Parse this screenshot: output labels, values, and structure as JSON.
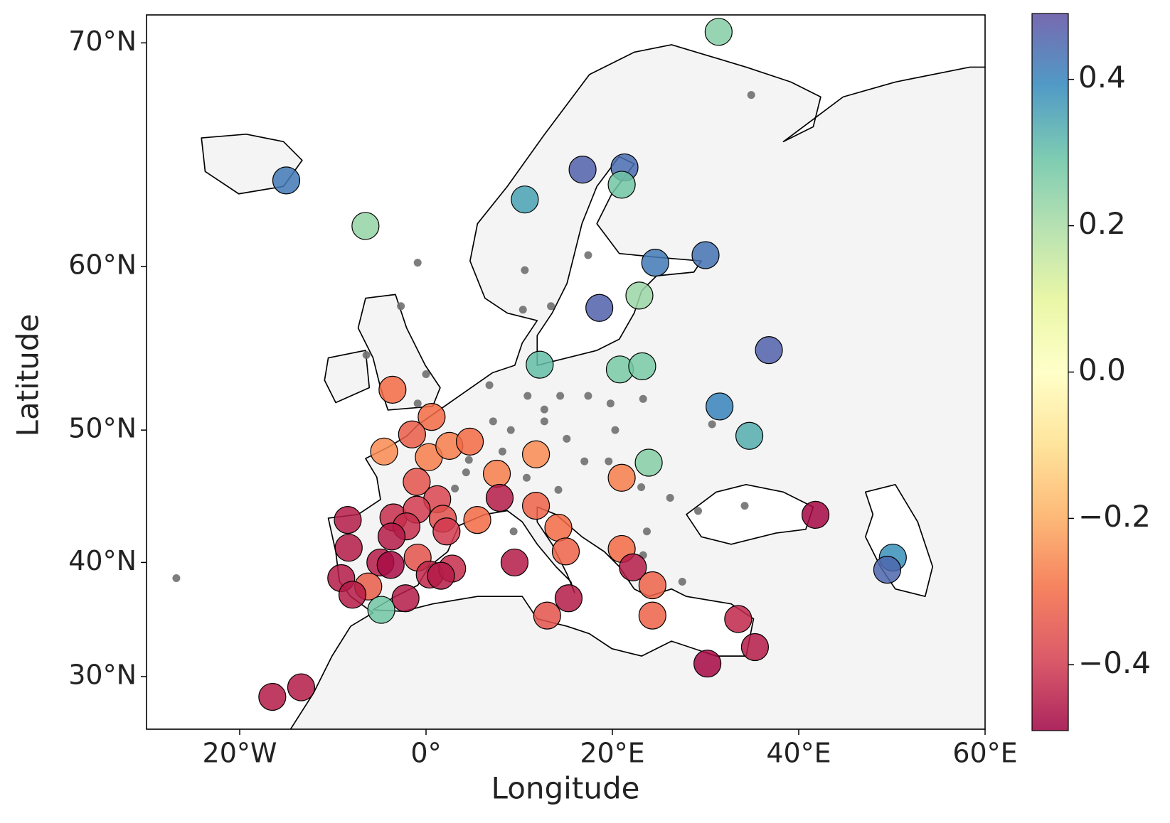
{
  "chart_data": {
    "type": "scatter",
    "projection": "mercator",
    "xlabel": "Longitude",
    "ylabel": "Latitude",
    "xlim": [
      -30,
      60
    ],
    "ylim": [
      25,
      71
    ],
    "xticks": [
      {
        "value": -20,
        "label": "20°W"
      },
      {
        "value": 0,
        "label": "0°"
      },
      {
        "value": 20,
        "label": "20°E"
      },
      {
        "value": 40,
        "label": "40°E"
      },
      {
        "value": 60,
        "label": "60°E"
      }
    ],
    "yticks": [
      {
        "value": 30,
        "label": "30°N"
      },
      {
        "value": 40,
        "label": "40°N"
      },
      {
        "value": 50,
        "label": "50°N"
      },
      {
        "value": 60,
        "label": "60°N"
      },
      {
        "value": 70,
        "label": "70°N"
      }
    ],
    "colormap": "Spectral",
    "clim": [
      -0.49,
      0.49
    ],
    "cticks": [
      {
        "value": -0.4,
        "label": "−0.4"
      },
      {
        "value": -0.2,
        "label": "−0.2"
      },
      {
        "value": 0,
        "label": "0.0"
      },
      0.2,
      0.4
    ],
    "series": [
      {
        "x": [
          31.4,
          -15,
          -6.5,
          10.6,
          16.8,
          21.3,
          21,
          24.6,
          30,
          18.6,
          22.9,
          36.8,
          12.2,
          20.8,
          23.2,
          31.5,
          34.7,
          23.9,
          -3.6,
          0.6,
          -1.5,
          -4.5,
          0.3,
          2.5,
          4.7,
          11.8,
          7.6,
          21,
          -1,
          7.9,
          1.2,
          11.8,
          -8.4,
          -3.5,
          -1,
          1.8,
          5.5,
          -2.1,
          2.2,
          -3.7,
          14.2,
          -8.3,
          -4.9,
          -3.8,
          -0.9,
          15,
          21,
          9.5,
          22.2,
          0.4,
          2.8,
          1.6,
          -9.1,
          -6.2,
          -7.9,
          -2.2,
          24.3,
          -4.8,
          15.3,
          13,
          24.3,
          33.5,
          35.3,
          30.2,
          41.8,
          50.1,
          49.5,
          -16.5,
          -13.4
        ],
        "y": [
          70.4,
          64.3,
          62.1,
          63.4,
          64.8,
          64.9,
          64.1,
          60.2,
          60.6,
          57.7,
          58.4,
          55.2,
          54.3,
          54.0,
          54.2,
          51.6,
          49.6,
          47.7,
          52.7,
          50.9,
          49.7,
          48.5,
          48.1,
          48.9,
          49.2,
          48.3,
          46.9,
          46.6,
          46.3,
          45.1,
          45.0,
          44.5,
          43.4,
          43.6,
          44.2,
          43.5,
          43.4,
          42.9,
          42.5,
          42.1,
          42.8,
          41.2,
          40.0,
          39.8,
          40.4,
          40.9,
          41.1,
          40.0,
          39.6,
          39.0,
          39.5,
          38.9,
          38.7,
          38.0,
          37.3,
          37.0,
          38.1,
          36.0,
          37.0,
          35.5,
          35.5,
          35.2,
          32.7,
          31.2,
          43.8,
          40.4,
          39.4,
          28.1,
          29.0
        ],
        "values": [
          0.25,
          0.42,
          0.23,
          0.35,
          0.46,
          0.44,
          0.28,
          0.42,
          0.43,
          0.46,
          0.22,
          0.46,
          0.3,
          0.27,
          0.27,
          0.4,
          0.33,
          0.25,
          -0.3,
          -0.3,
          -0.33,
          -0.25,
          -0.27,
          -0.27,
          -0.3,
          -0.25,
          -0.27,
          -0.27,
          -0.35,
          -0.45,
          -0.38,
          -0.32,
          -0.45,
          -0.42,
          -0.4,
          -0.36,
          -0.3,
          -0.42,
          -0.4,
          -0.45,
          -0.3,
          -0.45,
          -0.45,
          -0.47,
          -0.35,
          -0.32,
          -0.3,
          -0.45,
          -0.45,
          -0.43,
          -0.42,
          -0.45,
          -0.45,
          -0.33,
          -0.45,
          -0.45,
          -0.32,
          0.28,
          -0.45,
          -0.35,
          -0.32,
          -0.43,
          -0.45,
          -0.48,
          -0.48,
          0.38,
          0.45,
          -0.45,
          -0.45
        ]
      },
      {
        "color": "#707070",
        "x": [
          34.9,
          -0.9,
          10.6,
          17.4,
          10.4,
          13.4,
          -2.7,
          -6.4,
          0,
          -0.9,
          6.8,
          10.9,
          12.7,
          14.4,
          17.4,
          19.8,
          23.3,
          7.2,
          9.1,
          12.7,
          15.1,
          20.3,
          30.7,
          8.2,
          4.6,
          17,
          19.6,
          3.1,
          4.3,
          10.8,
          14.2,
          23.1,
          26.2,
          34.2,
          23.7,
          9.4,
          23.3,
          27.5,
          -26.8,
          29.2
        ],
        "y": [
          68.0,
          60.2,
          59.8,
          60.6,
          57.6,
          57.8,
          57.8,
          54.9,
          53.7,
          51.8,
          53.0,
          52.3,
          51.4,
          52.3,
          52.3,
          51.8,
          52.1,
          50.6,
          50.0,
          50.6,
          49.4,
          50.0,
          50.4,
          48.5,
          47.9,
          47.8,
          47.8,
          45.8,
          47.0,
          46.6,
          45.7,
          45.9,
          45.1,
          44.5,
          42.5,
          42.5,
          40.6,
          38.4,
          38.7,
          44.1
        ]
      }
    ]
  }
}
